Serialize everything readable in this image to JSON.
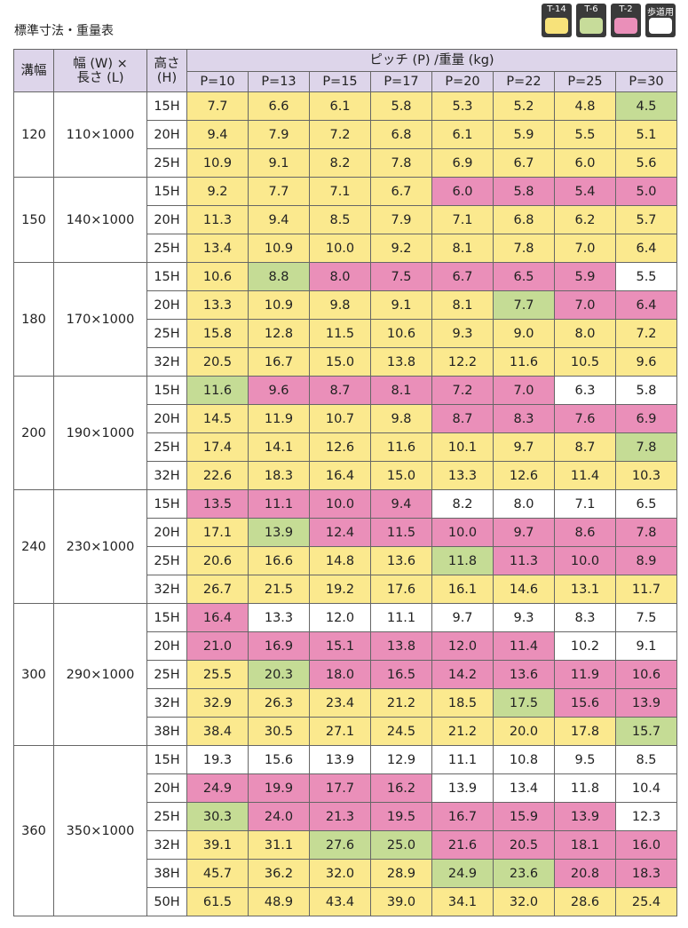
{
  "header": {
    "title": "標準寸法・重量表"
  },
  "legend": [
    {
      "label": "T-14",
      "color": "#f7e27a"
    },
    {
      "label": "T-6",
      "color": "#c7dc9a"
    },
    {
      "label": "T-2",
      "color": "#ea8fb9"
    },
    {
      "label": "歩道用",
      "color": "#ffffff"
    }
  ],
  "table": {
    "headers": {
      "groove": "溝幅",
      "size_line1": "幅 (W) ×",
      "size_line2": "長さ (L)",
      "height_line1": "高さ",
      "height_line2": "(H)",
      "pitch": "ピッチ (P) /重量 (kg)"
    },
    "pitches": [
      "P=10",
      "P=13",
      "P=15",
      "P=17",
      "P=20",
      "P=22",
      "P=25",
      "P=30"
    ],
    "groups": [
      {
        "groove": "120",
        "size": "110×1000",
        "rows": [
          {
            "height": "15H",
            "values": [
              "7.7",
              "6.6",
              "6.1",
              "5.8",
              "5.3",
              "5.2",
              "4.8",
              "4.5"
            ],
            "colors": [
              "#fbe98e",
              "#fbe98e",
              "#fbe98e",
              "#fbe98e",
              "#fbe98e",
              "#fbe98e",
              "#fbe98e",
              "#c5dc95"
            ]
          },
          {
            "height": "20H",
            "values": [
              "9.4",
              "7.9",
              "7.2",
              "6.8",
              "6.1",
              "5.9",
              "5.5",
              "5.1"
            ],
            "colors": [
              "#fbe98e",
              "#fbe98e",
              "#fbe98e",
              "#fbe98e",
              "#fbe98e",
              "#fbe98e",
              "#fbe98e",
              "#fbe98e"
            ]
          },
          {
            "height": "25H",
            "values": [
              "10.9",
              "9.1",
              "8.2",
              "7.8",
              "6.9",
              "6.7",
              "6.0",
              "5.6"
            ],
            "colors": [
              "#fbe98e",
              "#fbe98e",
              "#fbe98e",
              "#fbe98e",
              "#fbe98e",
              "#fbe98e",
              "#fbe98e",
              "#fbe98e"
            ]
          }
        ]
      },
      {
        "groove": "150",
        "size": "140×1000",
        "rows": [
          {
            "height": "15H",
            "values": [
              "9.2",
              "7.7",
              "7.1",
              "6.7",
              "6.0",
              "5.8",
              "5.4",
              "5.0"
            ],
            "colors": [
              "#fbe98e",
              "#fbe98e",
              "#fbe98e",
              "#fbe98e",
              "#ea8fb9",
              "#ea8fb9",
              "#ea8fb9",
              "#ea8fb9"
            ]
          },
          {
            "height": "20H",
            "values": [
              "11.3",
              "9.4",
              "8.5",
              "7.9",
              "7.1",
              "6.8",
              "6.2",
              "5.7"
            ],
            "colors": [
              "#fbe98e",
              "#fbe98e",
              "#fbe98e",
              "#fbe98e",
              "#fbe98e",
              "#fbe98e",
              "#fbe98e",
              "#fbe98e"
            ]
          },
          {
            "height": "25H",
            "values": [
              "13.4",
              "10.9",
              "10.0",
              "9.2",
              "8.1",
              "7.8",
              "7.0",
              "6.4"
            ],
            "colors": [
              "#fbe98e",
              "#fbe98e",
              "#fbe98e",
              "#fbe98e",
              "#fbe98e",
              "#fbe98e",
              "#fbe98e",
              "#fbe98e"
            ]
          }
        ]
      },
      {
        "groove": "180",
        "size": "170×1000",
        "rows": [
          {
            "height": "15H",
            "values": [
              "10.6",
              "8.8",
              "8.0",
              "7.5",
              "6.7",
              "6.5",
              "5.9",
              "5.5"
            ],
            "colors": [
              "#fbe98e",
              "#c5dc95",
              "#ea8fb9",
              "#ea8fb9",
              "#ea8fb9",
              "#ea8fb9",
              "#ea8fb9",
              "#ffffff"
            ]
          },
          {
            "height": "20H",
            "values": [
              "13.3",
              "10.9",
              "9.8",
              "9.1",
              "8.1",
              "7.7",
              "7.0",
              "6.4"
            ],
            "colors": [
              "#fbe98e",
              "#fbe98e",
              "#fbe98e",
              "#fbe98e",
              "#fbe98e",
              "#c5dc95",
              "#ea8fb9",
              "#ea8fb9"
            ]
          },
          {
            "height": "25H",
            "values": [
              "15.8",
              "12.8",
              "11.5",
              "10.6",
              "9.3",
              "9.0",
              "8.0",
              "7.2"
            ],
            "colors": [
              "#fbe98e",
              "#fbe98e",
              "#fbe98e",
              "#fbe98e",
              "#fbe98e",
              "#fbe98e",
              "#fbe98e",
              "#fbe98e"
            ]
          },
          {
            "height": "32H",
            "values": [
              "20.5",
              "16.7",
              "15.0",
              "13.8",
              "12.2",
              "11.6",
              "10.5",
              "9.6"
            ],
            "colors": [
              "#fbe98e",
              "#fbe98e",
              "#fbe98e",
              "#fbe98e",
              "#fbe98e",
              "#fbe98e",
              "#fbe98e",
              "#fbe98e"
            ]
          }
        ]
      },
      {
        "groove": "200",
        "size": "190×1000",
        "rows": [
          {
            "height": "15H",
            "values": [
              "11.6",
              "9.6",
              "8.7",
              "8.1",
              "7.2",
              "7.0",
              "6.3",
              "5.8"
            ],
            "colors": [
              "#c5dc95",
              "#ea8fb9",
              "#ea8fb9",
              "#ea8fb9",
              "#ea8fb9",
              "#ea8fb9",
              "#ffffff",
              "#ffffff"
            ]
          },
          {
            "height": "20H",
            "values": [
              "14.5",
              "11.9",
              "10.7",
              "9.8",
              "8.7",
              "8.3",
              "7.6",
              "6.9"
            ],
            "colors": [
              "#fbe98e",
              "#fbe98e",
              "#fbe98e",
              "#fbe98e",
              "#ea8fb9",
              "#ea8fb9",
              "#ea8fb9",
              "#ea8fb9"
            ]
          },
          {
            "height": "25H",
            "values": [
              "17.4",
              "14.1",
              "12.6",
              "11.6",
              "10.1",
              "9.7",
              "8.7",
              "7.8"
            ],
            "colors": [
              "#fbe98e",
              "#fbe98e",
              "#fbe98e",
              "#fbe98e",
              "#fbe98e",
              "#fbe98e",
              "#fbe98e",
              "#c5dc95"
            ]
          },
          {
            "height": "32H",
            "values": [
              "22.6",
              "18.3",
              "16.4",
              "15.0",
              "13.3",
              "12.6",
              "11.4",
              "10.3"
            ],
            "colors": [
              "#fbe98e",
              "#fbe98e",
              "#fbe98e",
              "#fbe98e",
              "#fbe98e",
              "#fbe98e",
              "#fbe98e",
              "#fbe98e"
            ]
          }
        ]
      },
      {
        "groove": "240",
        "size": "230×1000",
        "rows": [
          {
            "height": "15H",
            "values": [
              "13.5",
              "11.1",
              "10.0",
              "9.4",
              "8.2",
              "8.0",
              "7.1",
              "6.5"
            ],
            "colors": [
              "#ea8fb9",
              "#ea8fb9",
              "#ea8fb9",
              "#ea8fb9",
              "#ffffff",
              "#ffffff",
              "#ffffff",
              "#ffffff"
            ]
          },
          {
            "height": "20H",
            "values": [
              "17.1",
              "13.9",
              "12.4",
              "11.5",
              "10.0",
              "9.7",
              "8.6",
              "7.8"
            ],
            "colors": [
              "#fbe98e",
              "#c5dc95",
              "#ea8fb9",
              "#ea8fb9",
              "#ea8fb9",
              "#ea8fb9",
              "#ea8fb9",
              "#ea8fb9"
            ]
          },
          {
            "height": "25H",
            "values": [
              "20.6",
              "16.6",
              "14.8",
              "13.6",
              "11.8",
              "11.3",
              "10.0",
              "8.9"
            ],
            "colors": [
              "#fbe98e",
              "#fbe98e",
              "#fbe98e",
              "#fbe98e",
              "#c5dc95",
              "#ea8fb9",
              "#ea8fb9",
              "#ea8fb9"
            ]
          },
          {
            "height": "32H",
            "values": [
              "26.7",
              "21.5",
              "19.2",
              "17.6",
              "16.1",
              "14.6",
              "13.1",
              "11.7"
            ],
            "colors": [
              "#fbe98e",
              "#fbe98e",
              "#fbe98e",
              "#fbe98e",
              "#fbe98e",
              "#fbe98e",
              "#fbe98e",
              "#fbe98e"
            ]
          }
        ]
      },
      {
        "groove": "300",
        "size": "290×1000",
        "rows": [
          {
            "height": "15H",
            "values": [
              "16.4",
              "13.3",
              "12.0",
              "11.1",
              "9.7",
              "9.3",
              "8.3",
              "7.5"
            ],
            "colors": [
              "#ea8fb9",
              "#ffffff",
              "#ffffff",
              "#ffffff",
              "#ffffff",
              "#ffffff",
              "#ffffff",
              "#ffffff"
            ]
          },
          {
            "height": "20H",
            "values": [
              "21.0",
              "16.9",
              "15.1",
              "13.8",
              "12.0",
              "11.4",
              "10.2",
              "9.1"
            ],
            "colors": [
              "#ea8fb9",
              "#ea8fb9",
              "#ea8fb9",
              "#ea8fb9",
              "#ea8fb9",
              "#ea8fb9",
              "#ffffff",
              "#ffffff"
            ]
          },
          {
            "height": "25H",
            "values": [
              "25.5",
              "20.3",
              "18.0",
              "16.5",
              "14.2",
              "13.6",
              "11.9",
              "10.6"
            ],
            "colors": [
              "#fbe98e",
              "#c5dc95",
              "#ea8fb9",
              "#ea8fb9",
              "#ea8fb9",
              "#ea8fb9",
              "#ea8fb9",
              "#ea8fb9"
            ]
          },
          {
            "height": "32H",
            "values": [
              "32.9",
              "26.3",
              "23.4",
              "21.2",
              "18.5",
              "17.5",
              "15.6",
              "13.9"
            ],
            "colors": [
              "#fbe98e",
              "#fbe98e",
              "#fbe98e",
              "#fbe98e",
              "#fbe98e",
              "#c5dc95",
              "#ea8fb9",
              "#ea8fb9"
            ]
          },
          {
            "height": "38H",
            "values": [
              "38.4",
              "30.5",
              "27.1",
              "24.5",
              "21.2",
              "20.0",
              "17.8",
              "15.7"
            ],
            "colors": [
              "#fbe98e",
              "#fbe98e",
              "#fbe98e",
              "#fbe98e",
              "#fbe98e",
              "#fbe98e",
              "#fbe98e",
              "#c5dc95"
            ]
          }
        ]
      },
      {
        "groove": "360",
        "size": "350×1000",
        "rows": [
          {
            "height": "15H",
            "values": [
              "19.3",
              "15.6",
              "13.9",
              "12.9",
              "11.1",
              "10.8",
              "9.5",
              "8.5"
            ],
            "colors": [
              "#ffffff",
              "#ffffff",
              "#ffffff",
              "#ffffff",
              "#ffffff",
              "#ffffff",
              "#ffffff",
              "#ffffff"
            ]
          },
          {
            "height": "20H",
            "values": [
              "24.9",
              "19.9",
              "17.7",
              "16.2",
              "13.9",
              "13.4",
              "11.8",
              "10.4"
            ],
            "colors": [
              "#ea8fb9",
              "#ea8fb9",
              "#ea8fb9",
              "#ea8fb9",
              "#ffffff",
              "#ffffff",
              "#ffffff",
              "#ffffff"
            ]
          },
          {
            "height": "25H",
            "values": [
              "30.3",
              "24.0",
              "21.3",
              "19.5",
              "16.7",
              "15.9",
              "13.9",
              "12.3"
            ],
            "colors": [
              "#c5dc95",
              "#ea8fb9",
              "#ea8fb9",
              "#ea8fb9",
              "#ea8fb9",
              "#ea8fb9",
              "#ea8fb9",
              "#ffffff"
            ]
          },
          {
            "height": "32H",
            "values": [
              "39.1",
              "31.1",
              "27.6",
              "25.0",
              "21.6",
              "20.5",
              "18.1",
              "16.0"
            ],
            "colors": [
              "#fbe98e",
              "#fbe98e",
              "#c5dc95",
              "#c5dc95",
              "#ea8fb9",
              "#ea8fb9",
              "#ea8fb9",
              "#ea8fb9"
            ]
          },
          {
            "height": "38H",
            "values": [
              "45.7",
              "36.2",
              "32.0",
              "28.9",
              "24.9",
              "23.6",
              "20.8",
              "18.3"
            ],
            "colors": [
              "#fbe98e",
              "#fbe98e",
              "#fbe98e",
              "#fbe98e",
              "#c5dc95",
              "#c5dc95",
              "#ea8fb9",
              "#ea8fb9"
            ]
          },
          {
            "height": "50H",
            "values": [
              "61.5",
              "48.9",
              "43.4",
              "39.0",
              "34.1",
              "32.0",
              "28.6",
              "25.4"
            ],
            "colors": [
              "#fbe98e",
              "#fbe98e",
              "#fbe98e",
              "#fbe98e",
              "#fbe98e",
              "#fbe98e",
              "#fbe98e",
              "#fbe98e"
            ]
          }
        ]
      }
    ]
  }
}
